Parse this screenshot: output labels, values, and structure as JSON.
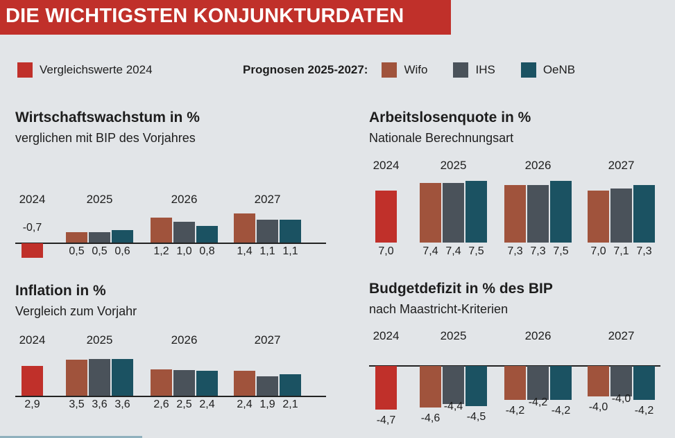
{
  "header": {
    "title": "DIE WICHTIGSTEN KONJUNKTURDATEN"
  },
  "legend": {
    "compare_label": "Vergleichswerte 2024",
    "forecast_label": "Prognosen 2025-2027:",
    "items": [
      {
        "name": "Wifo",
        "color": "#a0533c"
      },
      {
        "name": "IHS",
        "color": "#4a525a"
      },
      {
        "name": "OeNB",
        "color": "#1b5262"
      }
    ],
    "compare_color": "#c0302a"
  },
  "chart_data": [
    {
      "type": "bar",
      "title": "Wirtschaftswachstum in %",
      "subtitle": "verglichen mit BIP des Vorjahres",
      "categories": [
        "2024",
        "2025",
        "2026",
        "2027"
      ],
      "series": [
        {
          "name": "Vergleichswerte 2024",
          "values": [
            -0.7,
            null,
            null,
            null
          ]
        },
        {
          "name": "Wifo",
          "values": [
            null,
            0.5,
            1.2,
            1.4
          ]
        },
        {
          "name": "IHS",
          "values": [
            null,
            0.5,
            1.0,
            1.1
          ]
        },
        {
          "name": "OeNB",
          "values": [
            null,
            0.6,
            0.8,
            1.1
          ]
        }
      ]
    },
    {
      "type": "bar",
      "title": "Arbeitslosenquote in %",
      "subtitle": "Nationale Berechnungsart",
      "categories": [
        "2024",
        "2025",
        "2026",
        "2027"
      ],
      "series": [
        {
          "name": "Vergleichswerte 2024",
          "values": [
            7.0,
            null,
            null,
            null
          ]
        },
        {
          "name": "Wifo",
          "values": [
            null,
            7.4,
            7.3,
            7.0
          ]
        },
        {
          "name": "IHS",
          "values": [
            null,
            7.4,
            7.3,
            7.1
          ]
        },
        {
          "name": "OeNB",
          "values": [
            null,
            7.5,
            7.5,
            7.3
          ]
        }
      ]
    },
    {
      "type": "bar",
      "title": "Inflation in %",
      "subtitle": "Vergleich zum Vorjahr",
      "categories": [
        "2024",
        "2025",
        "2026",
        "2027"
      ],
      "series": [
        {
          "name": "Vergleichswerte 2024",
          "values": [
            2.9,
            null,
            null,
            null
          ]
        },
        {
          "name": "Wifo",
          "values": [
            null,
            3.5,
            2.6,
            2.4
          ]
        },
        {
          "name": "IHS",
          "values": [
            null,
            3.6,
            2.5,
            1.9
          ]
        },
        {
          "name": "OeNB",
          "values": [
            null,
            3.6,
            2.4,
            2.1
          ]
        }
      ]
    },
    {
      "type": "bar",
      "title": "Budgetdefizit in % des BIP",
      "subtitle": "nach Maastricht-Kriterien",
      "categories": [
        "2024",
        "2025",
        "2026",
        "2027"
      ],
      "series": [
        {
          "name": "Vergleichswerte 2024",
          "values": [
            -4.7,
            null,
            null,
            null
          ]
        },
        {
          "name": "Wifo",
          "values": [
            null,
            -4.6,
            -4.2,
            -4.0
          ]
        },
        {
          "name": "IHS",
          "values": [
            null,
            -4.4,
            -4.2,
            -4.0
          ]
        },
        {
          "name": "OeNB",
          "values": [
            null,
            -4.5,
            -4.2,
            -4.2
          ]
        }
      ]
    }
  ]
}
